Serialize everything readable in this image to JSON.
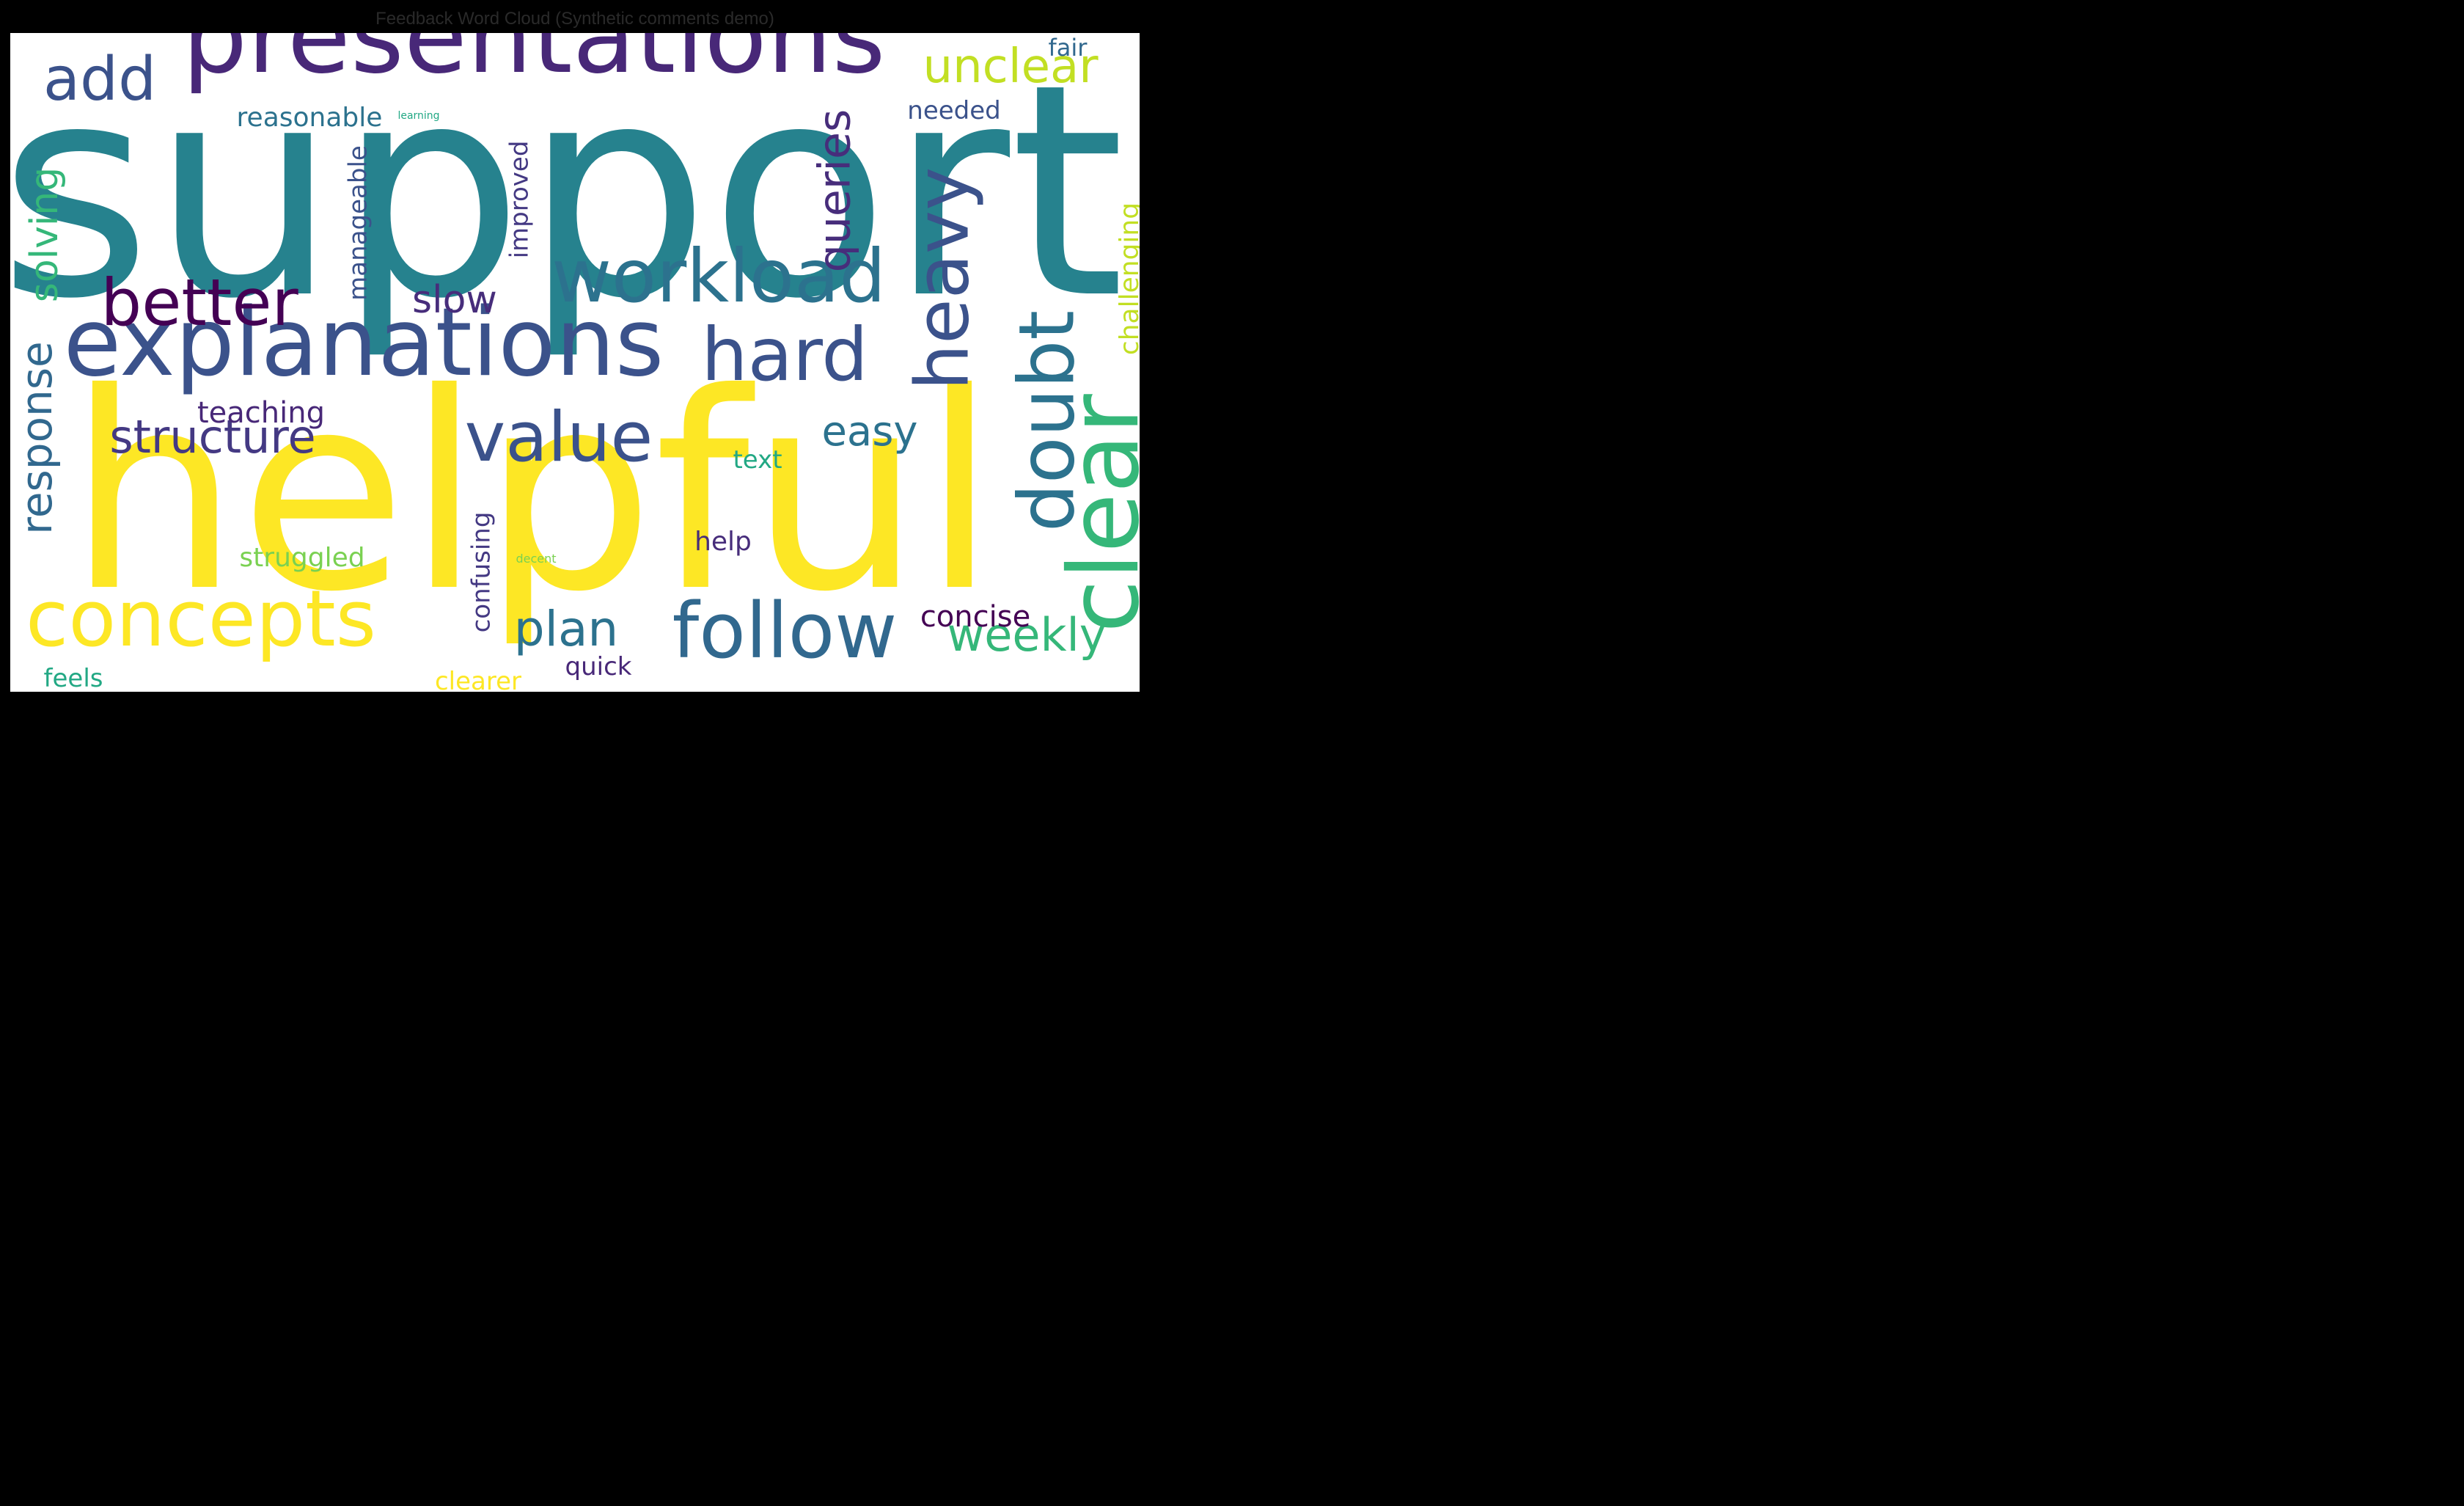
{
  "chart_data": {
    "type": "wordcloud",
    "title": "Feedback Word Cloud (Synthetic comments demo)",
    "words": [
      {
        "text": "support",
        "color": "#26828e"
      },
      {
        "text": "helpful",
        "color": "#fde725"
      },
      {
        "text": "presentations",
        "color": "#482878"
      },
      {
        "text": "explanations",
        "color": "#3b528b"
      },
      {
        "text": "workload",
        "color": "#2c728e"
      },
      {
        "text": "follow",
        "color": "#31688e"
      },
      {
        "text": "concepts",
        "color": "#fde725"
      },
      {
        "text": "clear",
        "color": "#35b779"
      },
      {
        "text": "heavy",
        "color": "#3b528b"
      },
      {
        "text": "hard",
        "color": "#3b528b"
      },
      {
        "text": "doubt",
        "color": "#2c728e"
      },
      {
        "text": "value",
        "color": "#3b528b"
      },
      {
        "text": "better",
        "color": "#440154"
      },
      {
        "text": "add",
        "color": "#3b528b"
      },
      {
        "text": "unclear",
        "color": "#c2df23"
      },
      {
        "text": "structure",
        "color": "#443983"
      },
      {
        "text": "weekly",
        "color": "#35b779"
      },
      {
        "text": "plan",
        "color": "#2c728e"
      },
      {
        "text": "queries",
        "color": "#472d7b"
      },
      {
        "text": "response",
        "color": "#31688e"
      },
      {
        "text": "solving",
        "color": "#35b779"
      },
      {
        "text": "easy",
        "color": "#2c728e"
      },
      {
        "text": "slow",
        "color": "#472d7b"
      },
      {
        "text": "concise",
        "color": "#440154"
      },
      {
        "text": "teaching",
        "color": "#482878"
      },
      {
        "text": "challenging",
        "color": "#c2df23"
      },
      {
        "text": "reasonable",
        "color": "#2c728e"
      },
      {
        "text": "manageable",
        "color": "#3b528b"
      },
      {
        "text": "improved",
        "color": "#443983"
      },
      {
        "text": "confusing",
        "color": "#443983"
      },
      {
        "text": "struggled",
        "color": "#7ad151"
      },
      {
        "text": "help",
        "color": "#472d7b"
      },
      {
        "text": "needed",
        "color": "#3b528b"
      },
      {
        "text": "fair",
        "color": "#31688e"
      },
      {
        "text": "text",
        "color": "#22a884"
      },
      {
        "text": "quick",
        "color": "#482878"
      },
      {
        "text": "feels",
        "color": "#22a884"
      },
      {
        "text": "clearer",
        "color": "#fde725"
      },
      {
        "text": "decent",
        "color": "#7ad151"
      },
      {
        "text": "learning",
        "color": "#22a884"
      }
    ]
  }
}
